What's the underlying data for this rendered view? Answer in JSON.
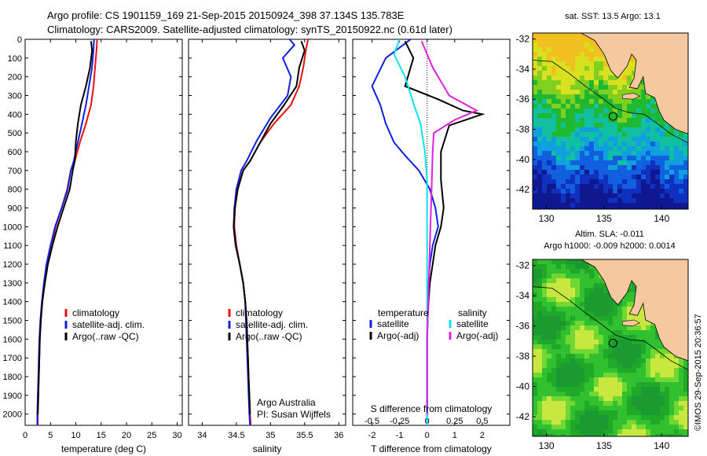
{
  "header": {
    "line1": "Argo profile: CS 1901159_169 21-Sep-2015 20150924_398 37.134S 135.783E",
    "line2": "Climatology: CARS2009. Satellite-adjusted climatology: synTS_20150922.nc (0.61d later)"
  },
  "colors": {
    "climatology": "#e81010",
    "satellite": "#1020e0",
    "argo": "#000000",
    "satellite_salinity": "#10e0f0",
    "argo_salinity_diff": "#e020e0",
    "land": "#f6c8a0",
    "frame": "#000000"
  },
  "chart_data": [
    {
      "id": "temperature",
      "type": "line",
      "xlabel": "temperature (deg C)",
      "ylabel": "",
      "xlim": [
        0,
        31
      ],
      "ylim": [
        2060,
        0
      ],
      "y_inverted": true,
      "xticks": [
        0,
        5,
        10,
        15,
        20,
        25,
        30
      ],
      "yticks": [
        0,
        100,
        200,
        300,
        400,
        500,
        600,
        700,
        800,
        900,
        1000,
        1100,
        1200,
        1300,
        1400,
        1500,
        1600,
        1700,
        1800,
        1900,
        2000
      ],
      "legend": {
        "position": "lower-center",
        "entries": [
          "climatology",
          "satellite-adj. clim.",
          "Argo(..raw -QC)"
        ]
      },
      "series": [
        {
          "name": "climatology",
          "color": "#e81010",
          "x": [
            14.2,
            14.1,
            13.8,
            13.5,
            13.0,
            12.0,
            10.8,
            9.8,
            9.0,
            8.3,
            7.2,
            6.0,
            5.2,
            4.3,
            3.8,
            3.4,
            3.1,
            2.9,
            2.8,
            2.7,
            2.6,
            2.5,
            2.5
          ],
          "y": [
            0,
            50,
            150,
            250,
            350,
            450,
            550,
            650,
            700,
            800,
            900,
            1000,
            1100,
            1200,
            1300,
            1400,
            1500,
            1600,
            1700,
            1800,
            1900,
            2000,
            2060
          ]
        },
        {
          "name": "satellite-adj. clim.",
          "color": "#1020e0",
          "x": [
            13.6,
            13.5,
            13.2,
            12.6,
            12.0,
            11.2,
            10.4,
            9.6,
            9.0,
            8.4,
            7.2,
            5.9,
            5.0,
            4.2,
            3.7,
            3.3,
            3.0,
            2.8,
            2.7,
            2.6,
            2.5,
            2.4,
            2.4
          ],
          "y": [
            0,
            50,
            150,
            250,
            350,
            450,
            550,
            650,
            700,
            800,
            900,
            1000,
            1100,
            1200,
            1300,
            1400,
            1500,
            1600,
            1700,
            1800,
            1900,
            2000,
            2060
          ]
        },
        {
          "name": "Argo(..raw -QC)",
          "color": "#000000",
          "x": [
            13.0,
            13.2,
            12.8,
            12.0,
            11.0,
            10.4,
            10.0,
            9.8,
            9.4,
            8.8,
            7.6,
            6.4,
            5.4,
            4.5,
            3.9,
            3.4,
            3.1,
            2.9,
            2.8,
            2.7,
            2.6,
            2.5
          ],
          "y": [
            10,
            60,
            150,
            250,
            350,
            450,
            550,
            650,
            700,
            800,
            900,
            1000,
            1100,
            1200,
            1300,
            1400,
            1500,
            1600,
            1700,
            1800,
            1900,
            2000
          ]
        }
      ]
    },
    {
      "id": "salinity",
      "type": "line",
      "xlabel": "salinity",
      "ylabel": "",
      "xlim": [
        33.8,
        36.1
      ],
      "ylim": [
        2060,
        0
      ],
      "y_inverted": true,
      "xticks": [
        34,
        34.5,
        35,
        35.5,
        36
      ],
      "legend": {
        "position": "lower-center",
        "entries": [
          "climatology",
          "satellite-adj. clim.",
          "Argo(..raw -QC)"
        ]
      },
      "annotation": [
        "Argo Australia",
        "PI: Susan Wijffels"
      ],
      "series": [
        {
          "name": "climatology",
          "color": "#e81010",
          "x": [
            35.55,
            35.52,
            35.48,
            35.42,
            35.3,
            35.05,
            34.85,
            34.7,
            34.6,
            34.52,
            34.48,
            34.47,
            34.5,
            34.55,
            34.6,
            34.63,
            34.65,
            34.66,
            34.67,
            34.68,
            34.69,
            34.7,
            34.71
          ],
          "y": [
            0,
            50,
            150,
            250,
            350,
            450,
            550,
            650,
            700,
            800,
            900,
            1000,
            1100,
            1200,
            1300,
            1400,
            1500,
            1600,
            1700,
            1800,
            1900,
            2000,
            2060
          ]
        },
        {
          "name": "satellite-adj. clim.",
          "color": "#1020e0",
          "x": [
            35.28,
            35.35,
            35.18,
            35.3,
            35.25,
            35.0,
            34.8,
            34.65,
            34.57,
            34.5,
            34.47,
            34.46,
            34.49,
            34.55,
            34.6,
            34.63,
            34.64,
            34.65,
            34.66,
            34.67,
            34.68,
            34.69,
            34.7
          ],
          "y": [
            0,
            30,
            100,
            200,
            300,
            420,
            540,
            650,
            700,
            800,
            900,
            1000,
            1100,
            1200,
            1300,
            1400,
            1500,
            1600,
            1700,
            1800,
            1900,
            2000,
            2060
          ]
        },
        {
          "name": "Argo(..raw -QC)",
          "color": "#000000",
          "x": [
            35.45,
            35.5,
            35.42,
            35.38,
            35.2,
            35.0,
            34.85,
            34.7,
            34.6,
            34.52,
            34.48,
            34.46,
            34.49,
            34.55,
            34.6,
            34.63,
            34.65,
            34.66,
            34.67,
            34.68,
            34.69,
            34.7
          ],
          "y": [
            10,
            60,
            150,
            250,
            350,
            450,
            550,
            650,
            700,
            800,
            900,
            1000,
            1100,
            1200,
            1300,
            1400,
            1500,
            1600,
            1700,
            1800,
            1900,
            2000
          ]
        }
      ]
    },
    {
      "id": "difference",
      "type": "line",
      "xlabel": "T difference from climatology",
      "x2label": "S difference from climatology",
      "xlim": [
        -2.7,
        3.0
      ],
      "x2lim": [
        -0.675,
        0.75
      ],
      "ylim": [
        2060,
        0
      ],
      "y_inverted": true,
      "xticks": [
        -2,
        -1,
        0,
        1,
        2
      ],
      "x2ticks": [
        -0.5,
        -0.25,
        0,
        0.25,
        0.5
      ],
      "x2ticklabels": [
        "-0.5",
        "-0.25",
        "0",
        "0.25",
        "0.5"
      ],
      "legend": {
        "position": "lower-center",
        "columns": [
          {
            "title": "temperature",
            "entries": [
              "satellite",
              "Argo(-adj)"
            ]
          },
          {
            "title": "salinity",
            "entries": [
              "satellite",
              "Argo(-adj)"
            ]
          }
        ]
      },
      "series": [
        {
          "name": "satellite",
          "group": "temperature",
          "color": "#1020e0",
          "x": [
            -0.6,
            -1.5,
            -2.0,
            -1.7,
            -1.5,
            -1.2,
            -0.8,
            -0.3,
            0.1,
            0.3,
            0.4,
            0.2,
            0.1,
            0.05,
            0.02,
            0.01,
            0.0,
            0.0,
            0.0,
            0.0,
            0.0,
            0.0
          ],
          "y": [
            0,
            100,
            250,
            350,
            450,
            550,
            620,
            700,
            800,
            900,
            1000,
            1100,
            1200,
            1300,
            1400,
            1500,
            1600,
            1700,
            1800,
            1900,
            2000,
            2060
          ]
        },
        {
          "name": "Argo(-adj)",
          "group": "temperature",
          "color": "#000000",
          "x": [
            -0.8,
            -0.5,
            -0.8,
            0.4,
            1.3,
            2.0,
            0.8,
            0.5,
            0.5,
            0.6,
            0.5,
            0.3,
            0.2,
            0.1,
            0.05,
            0.02,
            0.0,
            0.0,
            0.0,
            0.0,
            0.0
          ],
          "y": [
            10,
            100,
            250,
            320,
            380,
            400,
            460,
            600,
            750,
            900,
            1000,
            1100,
            1200,
            1300,
            1400,
            1500,
            1600,
            1700,
            1800,
            1900,
            2000
          ]
        },
        {
          "name": "satellite",
          "group": "salinity",
          "color": "#10e0f0",
          "x": [
            -0.25,
            -0.3,
            -0.2,
            -0.12,
            -0.06,
            -0.02,
            0.0,
            0.0,
            0.0,
            0.0,
            0.0,
            0.0,
            0.0,
            0.0,
            0.0
          ],
          "y": [
            0,
            80,
            200,
            350,
            450,
            600,
            750,
            900,
            1100,
            1300,
            1500,
            1700,
            1900,
            2000,
            2060
          ]
        },
        {
          "name": "Argo(-adj)",
          "group": "salinity",
          "color": "#e020e0",
          "x": [
            -0.05,
            0.05,
            0.2,
            0.45,
            0.25,
            0.06,
            0.05,
            0.04,
            0.03,
            0.02,
            0.01,
            0.0,
            0.0,
            0.0
          ],
          "y": [
            10,
            150,
            300,
            380,
            430,
            500,
            600,
            800,
            1000,
            1200,
            1400,
            1600,
            1800,
            2000
          ]
        }
      ]
    },
    {
      "id": "sst-map",
      "type": "heatmap",
      "title": "sat. SST: 13.5  Argo: 13.1",
      "xlim": [
        128.8,
        142.3
      ],
      "ylim": [
        -43.3,
        -31.6
      ],
      "xticks": [
        130,
        135,
        140
      ],
      "yticks": [
        -32,
        -34,
        -36,
        -38,
        -40,
        -42
      ],
      "marker": {
        "lon": 135.783,
        "lat": -37.134
      }
    },
    {
      "id": "sla-map",
      "type": "heatmap",
      "title": [
        "Altim. SLA: -0.011",
        "Argo h1000: -0.009 h2000: 0.0014"
      ],
      "xlim": [
        128.8,
        142.3
      ],
      "ylim": [
        -43.3,
        -31.6
      ],
      "xticks": [
        130,
        135,
        140
      ],
      "yticks": [
        -32,
        -34,
        -36,
        -38,
        -40,
        -42
      ],
      "marker": {
        "lon": 135.783,
        "lat": -37.134
      }
    }
  ],
  "side_note": "©IMOS 29-Sep-2015 20:36:57"
}
